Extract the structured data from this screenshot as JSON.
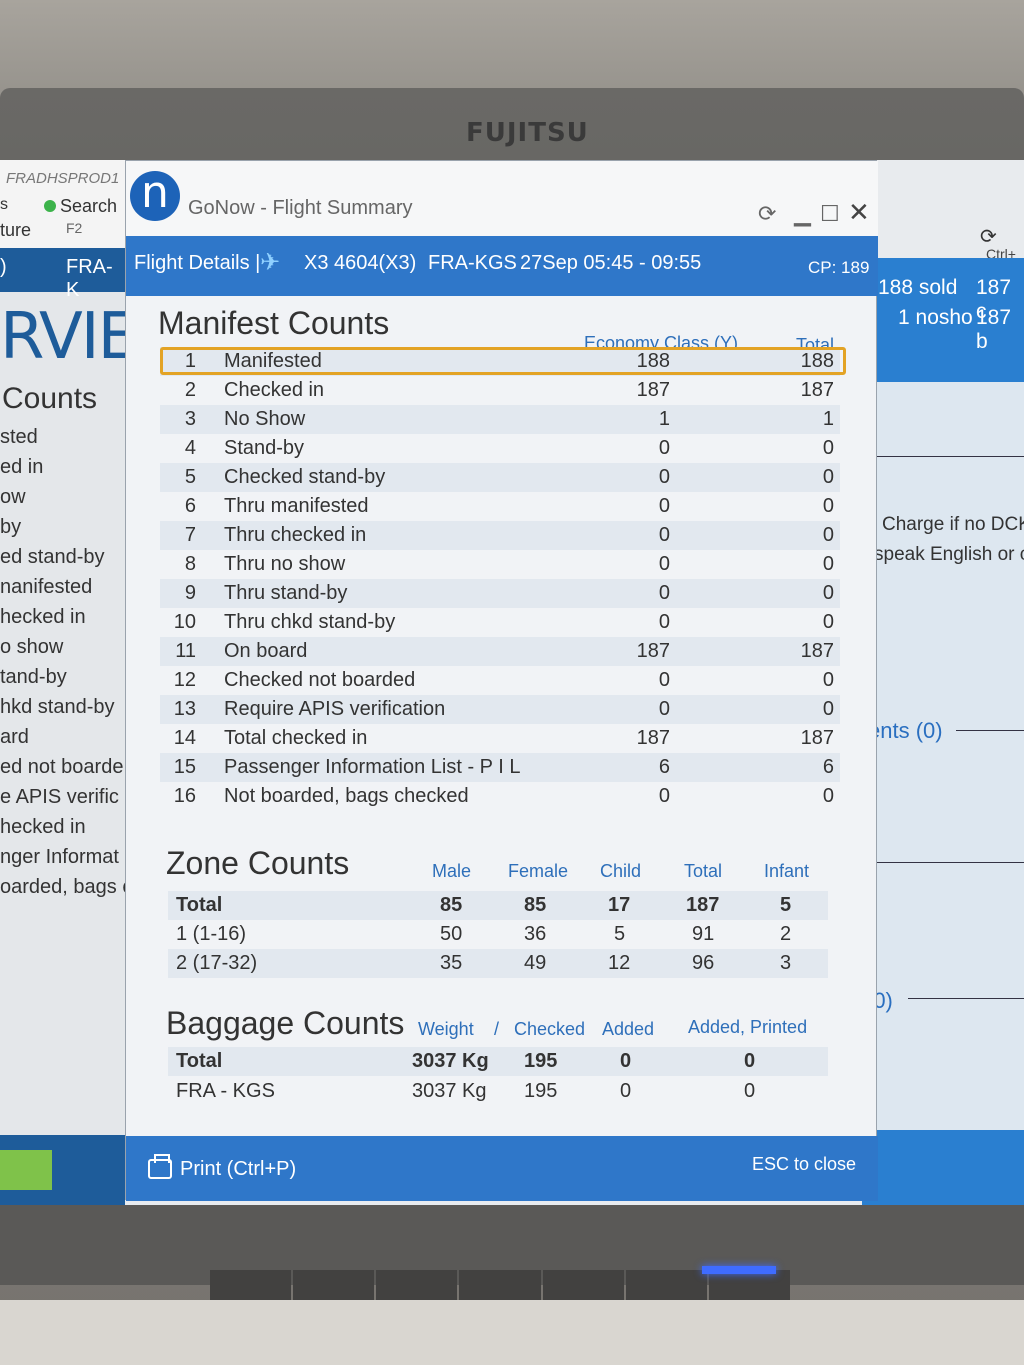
{
  "monitor": {
    "brand": "FUJITSU"
  },
  "background_left": {
    "server": "FRADHSPROD1",
    "s_label": "s",
    "search_label": "Search",
    "f2": "F2",
    "ture": "ture",
    "paren": ")",
    "route": "FRA-K",
    "big_title": "RVIE",
    "counts_title": "Counts",
    "items": [
      "sted",
      "ed in",
      "ow",
      "by",
      "ed stand-by",
      "nanifested",
      "hecked in",
      "o show",
      "tand-by",
      "hkd stand-by",
      "ard",
      "ed not boarde",
      "e APIS verific",
      "hecked in",
      "nger Informat",
      "oarded, bags c"
    ]
  },
  "background_right": {
    "ctrl": "Ctrl+",
    "sold": "188 sold",
    "c187": "187 c",
    "nosho": "1 nosho",
    "b187": "187 b",
    "charge": "Charge if no DCK",
    "speak": "speak English or c",
    "ents": "ents (0)",
    "zero": "(0)"
  },
  "window": {
    "app_title": "GoNow - Flight Summary",
    "header": {
      "flight_details": "Flight Details |",
      "flight": "X3 4604(X3)",
      "route": "FRA-KGS",
      "datetime": "27Sep 05:45 - 09:55",
      "cp": "CP: 189"
    },
    "manifest": {
      "title": "Manifest Counts",
      "col_class": "Economy Class (Y)",
      "col_total": "Total",
      "rows": [
        {
          "n": "1",
          "label": "Manifested",
          "y": "188",
          "total": "188"
        },
        {
          "n": "2",
          "label": "Checked in",
          "y": "187",
          "total": "187"
        },
        {
          "n": "3",
          "label": "No Show",
          "y": "1",
          "total": "1"
        },
        {
          "n": "4",
          "label": "Stand-by",
          "y": "0",
          "total": "0"
        },
        {
          "n": "5",
          "label": "Checked stand-by",
          "y": "0",
          "total": "0"
        },
        {
          "n": "6",
          "label": "Thru manifested",
          "y": "0",
          "total": "0"
        },
        {
          "n": "7",
          "label": "Thru checked in",
          "y": "0",
          "total": "0"
        },
        {
          "n": "8",
          "label": "Thru no show",
          "y": "0",
          "total": "0"
        },
        {
          "n": "9",
          "label": "Thru stand-by",
          "y": "0",
          "total": "0"
        },
        {
          "n": "10",
          "label": "Thru chkd stand-by",
          "y": "0",
          "total": "0"
        },
        {
          "n": "11",
          "label": "On board",
          "y": "187",
          "total": "187"
        },
        {
          "n": "12",
          "label": "Checked not boarded",
          "y": "0",
          "total": "0"
        },
        {
          "n": "13",
          "label": "Require APIS verification",
          "y": "0",
          "total": "0"
        },
        {
          "n": "14",
          "label": "Total checked in",
          "y": "187",
          "total": "187"
        },
        {
          "n": "15",
          "label": "Passenger Information List - P I L",
          "y": "6",
          "total": "6"
        },
        {
          "n": "16",
          "label": "Not boarded, bags checked",
          "y": "0",
          "total": "0"
        }
      ]
    },
    "zone": {
      "title": "Zone Counts",
      "cols": [
        "Male",
        "Female",
        "Child",
        "Total",
        "Infant"
      ],
      "rows": [
        {
          "label": "Total",
          "male": "85",
          "female": "85",
          "child": "17",
          "total": "187",
          "infant": "5"
        },
        {
          "label": "1 (1-16)",
          "male": "50",
          "female": "36",
          "child": "5",
          "total": "91",
          "infant": "2"
        },
        {
          "label": "2 (17-32)",
          "male": "35",
          "female": "49",
          "child": "12",
          "total": "96",
          "infant": "3"
        }
      ]
    },
    "baggage": {
      "title": "Baggage Counts",
      "col_weight": "Weight",
      "col_sep": "/",
      "col_checked": "Checked",
      "col_added": "Added",
      "col_added_printed": "Added, Printed",
      "rows": [
        {
          "label": "Total",
          "weight": "3037 Kg",
          "checked": "195",
          "added": "0",
          "added_printed": "0"
        },
        {
          "label": "FRA - KGS",
          "weight": "3037 Kg",
          "checked": "195",
          "added": "0",
          "added_printed": "0"
        }
      ]
    },
    "footer": {
      "print": "Print (Ctrl+P)",
      "esc": "ESC to close"
    }
  },
  "colors": {
    "accent": "#2f77c9",
    "highlight": "#e3a325",
    "header_text": "#2e6fba"
  }
}
